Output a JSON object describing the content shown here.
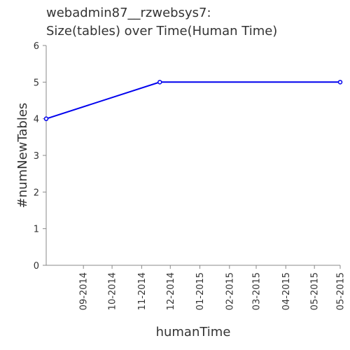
{
  "chart_data": {
    "type": "line",
    "title_lines": [
      "webadmin87__rzwebsys7:",
      "Size(tables) over Time(Human Time)"
    ],
    "xlabel": "humanTime",
    "ylabel": "#numNewTables",
    "ylim": [
      0,
      6
    ],
    "yticks": [
      "0",
      "1",
      "2",
      "3",
      "4",
      "5",
      "6"
    ],
    "xlim": [
      "2014-07-24",
      "2015-05-28"
    ],
    "xticks": [
      {
        "date": "2014-09-01",
        "label": "09-2014"
      },
      {
        "date": "2014-10-01",
        "label": "10-2014"
      },
      {
        "date": "2014-11-01",
        "label": "11-2014"
      },
      {
        "date": "2014-12-01",
        "label": "12-2014"
      },
      {
        "date": "2015-01-01",
        "label": "01-2015"
      },
      {
        "date": "2015-02-01",
        "label": "02-2015"
      },
      {
        "date": "2015-03-01",
        "label": "03-2015"
      },
      {
        "date": "2015-04-01",
        "label": "04-2015"
      },
      {
        "date": "2015-05-01",
        "label": "05-2015"
      },
      {
        "date": "2015-05-28",
        "label": "05-2015"
      }
    ],
    "series": [
      {
        "points": [
          {
            "x": "2014-07-24",
            "y": 4
          },
          {
            "x": "2014-11-20",
            "y": 5
          },
          {
            "x": "2015-05-28",
            "y": 5
          }
        ]
      }
    ],
    "grid": false,
    "colors": {
      "line": "#0000ee",
      "axis": "#888888",
      "text": "#333333"
    }
  }
}
